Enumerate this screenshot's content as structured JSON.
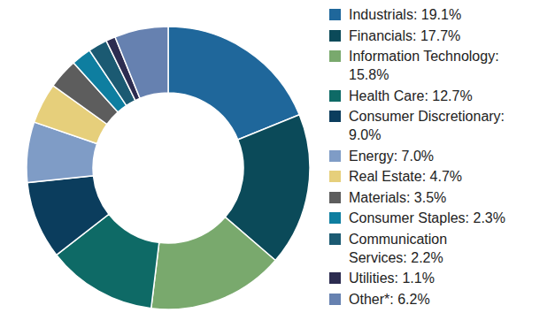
{
  "chart_data": {
    "type": "pie",
    "categories": [
      "Industrials: 19.1%",
      "Financials: 17.7%",
      "Information Technology: 15.8%",
      "Health Care: 12.7%",
      "Consumer Discretionary: 9.0%",
      "Energy: 7.0%",
      "Real Estate: 4.7%",
      "Materials: 3.5%",
      "Consumer Staples: 2.3%",
      "Communication Services: 2.2%",
      "Utilities: 1.1%",
      "Other*: 6.2%"
    ],
    "values": [
      19.1,
      17.7,
      15.8,
      12.7,
      9.0,
      7.0,
      4.7,
      3.5,
      2.3,
      2.2,
      1.1,
      6.2
    ],
    "colors": [
      "#1f679b",
      "#0b4a59",
      "#79a96d",
      "#0e6a66",
      "#0b3d5d",
      "#7f9cc6",
      "#e6cf7b",
      "#5d5d5d",
      "#0e7ea0",
      "#1b5a72",
      "#2c2c50",
      "#6681b0"
    ],
    "legend": "right"
  }
}
